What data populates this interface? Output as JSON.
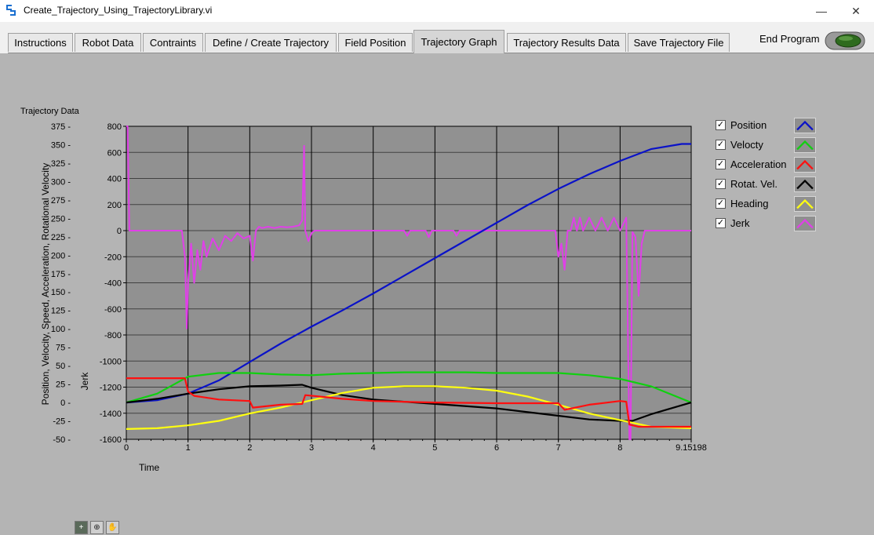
{
  "window": {
    "title": "Create_Trajectory_Using_TrajectoryLibrary.vi",
    "minimize": "—",
    "maximize": "☐",
    "close": "✕"
  },
  "tabs": [
    {
      "label": "Instructions"
    },
    {
      "label": "Robot Data"
    },
    {
      "label": "Contraints"
    },
    {
      "label": "Define / Create Trajectory"
    },
    {
      "label": "Field Position"
    },
    {
      "label": "Trajectory Graph"
    },
    {
      "label": "Trajectory Results Data"
    },
    {
      "label": "Save Trajectory File"
    }
  ],
  "active_tab": "Trajectory Graph",
  "end_program": {
    "label": "End Program"
  },
  "legend": [
    {
      "label": "Position",
      "color": "#0a12c8"
    },
    {
      "label": "Velocty",
      "color": "#10d010"
    },
    {
      "label": "Acceleration",
      "color": "#ff1010"
    },
    {
      "label": "Rotat. Vel.",
      "color": "#000000"
    },
    {
      "label": "Heading",
      "color": "#ffff10"
    },
    {
      "label": "Jerk",
      "color": "#e040e8"
    }
  ],
  "tools": {
    "cursor": "+",
    "zoom": "⊕",
    "pan": "✋"
  },
  "chart_data": {
    "type": "line",
    "title": "Trajectory Data",
    "xlabel": "Time",
    "ylabel": "Position, Velocity, Speed, Acceleration, Rotational Velocity",
    "ylabel_right": "Jerk",
    "x_ticks": [
      "0",
      "1",
      "2",
      "3",
      "4",
      "5",
      "6",
      "7",
      "8",
      "9.15198"
    ],
    "xlim": [
      0,
      9.15198
    ],
    "ylim_left": [
      -50,
      375
    ],
    "y_ticks_left": [
      "375",
      "350",
      "325",
      "300",
      "275",
      "250",
      "225",
      "200",
      "175",
      "150",
      "125",
      "100",
      "75",
      "50",
      "25",
      "0",
      "-25",
      "-50"
    ],
    "ylim_right": [
      -1600,
      800
    ],
    "y_ticks_right": [
      "800",
      "600",
      "400",
      "200",
      "0",
      "-200",
      "-400",
      "-600",
      "-800",
      "-1000",
      "-1200",
      "-1400",
      "-1600"
    ],
    "grid": true,
    "series": [
      {
        "name": "Position",
        "axis": "left",
        "color": "#0a12c8",
        "x": [
          0,
          0.5,
          1,
          1.5,
          2,
          2.5,
          3,
          3.5,
          4,
          4.5,
          5,
          5.5,
          6,
          6.5,
          7,
          7.5,
          8,
          8.5,
          9,
          9.15198
        ],
        "y": [
          0,
          3,
          12,
          30,
          55,
          80,
          103,
          125,
          148,
          172,
          196,
          220,
          244,
          268,
          290,
          310,
          328,
          344,
          351,
          351
        ]
      },
      {
        "name": "Velocty",
        "axis": "left",
        "color": "#10d010",
        "x": [
          0,
          0.5,
          1,
          1.5,
          2,
          2.5,
          3,
          3.5,
          4,
          4.5,
          5,
          5.5,
          6,
          6.5,
          7,
          7.5,
          8,
          8.5,
          9.15198
        ],
        "y": [
          0,
          12,
          35,
          40,
          40,
          38,
          37,
          39,
          40,
          41,
          41,
          41,
          40,
          40,
          40,
          37,
          32,
          22,
          0
        ]
      },
      {
        "name": "Acceleration",
        "axis": "left",
        "color": "#ff1010",
        "x": [
          0,
          0.5,
          0.95,
          1.0,
          1.1,
          1.5,
          2.0,
          2.05,
          2.5,
          2.85,
          2.9,
          3.5,
          4,
          5,
          6,
          7,
          7.1,
          7.5,
          8,
          8.1,
          8.15,
          8.3,
          9.15198
        ],
        "y": [
          33,
          33,
          33,
          15,
          9,
          4,
          2,
          -7,
          -3,
          -2,
          10,
          5,
          2,
          0,
          -1,
          -1,
          -10,
          -3,
          2,
          1,
          -30,
          -33,
          -33
        ]
      },
      {
        "name": "Rotat. Vel.",
        "axis": "left",
        "color": "#000000",
        "x": [
          0,
          0.5,
          1,
          1.5,
          2,
          2.5,
          2.85,
          3,
          3.5,
          4,
          5,
          6,
          7,
          7.5,
          8,
          8.2,
          8.5,
          9.15198
        ],
        "y": [
          0,
          5,
          12,
          18,
          22,
          23,
          24,
          20,
          10,
          4,
          -2,
          -8,
          -18,
          -23,
          -25,
          -25,
          -16,
          0
        ]
      },
      {
        "name": "Heading",
        "axis": "left",
        "color": "#ffff10",
        "x": [
          0,
          0.5,
          1,
          1.5,
          2,
          2.5,
          3,
          3.5,
          4,
          4.5,
          5,
          5.5,
          6,
          6.5,
          7,
          7.5,
          8,
          8.5,
          9.15198
        ],
        "y": [
          -36,
          -35,
          -31,
          -25,
          -15,
          -7,
          3,
          13,
          20,
          22,
          22,
          20,
          16,
          8,
          -3,
          -15,
          -24,
          -33,
          -35
        ]
      },
      {
        "name": "Jerk",
        "axis": "right",
        "color": "#e040e8",
        "x": [
          0,
          0.02,
          0.05,
          0.9,
          0.95,
          0.98,
          1.0,
          1.05,
          1.1,
          1.15,
          1.2,
          1.25,
          1.3,
          1.4,
          1.5,
          1.6,
          1.7,
          1.8,
          1.9,
          2.0,
          2.05,
          2.1,
          2.15,
          2.2,
          2.3,
          2.4,
          2.5,
          2.6,
          2.7,
          2.8,
          2.85,
          2.88,
          2.9,
          2.95,
          3.0,
          3.05,
          3.5,
          4.5,
          4.55,
          4.6,
          4.85,
          4.9,
          4.95,
          5.3,
          5.35,
          5.4,
          6,
          6.95,
          7.0,
          7.05,
          7.1,
          7.15,
          7.2,
          7.25,
          7.3,
          7.35,
          7.4,
          7.5,
          7.6,
          7.7,
          7.8,
          7.9,
          8.0,
          8.1,
          8.15,
          8.17,
          8.2,
          8.25,
          8.3,
          8.35,
          8.4,
          9.15198
        ],
        "y": [
          800,
          800,
          0,
          0,
          -200,
          -750,
          -400,
          -100,
          -400,
          -150,
          -300,
          -80,
          -200,
          -60,
          -150,
          -40,
          -80,
          -20,
          -60,
          -40,
          -230,
          0,
          30,
          20,
          30,
          20,
          30,
          25,
          30,
          40,
          80,
          650,
          0,
          -80,
          -20,
          0,
          0,
          0,
          -40,
          0,
          0,
          -50,
          0,
          0,
          -40,
          0,
          0,
          0,
          -200,
          -100,
          -300,
          0,
          0,
          100,
          0,
          100,
          0,
          100,
          0,
          100,
          0,
          100,
          0,
          100,
          -1650,
          -1600,
          -10,
          -50,
          -500,
          -100,
          0,
          0
        ]
      }
    ]
  }
}
